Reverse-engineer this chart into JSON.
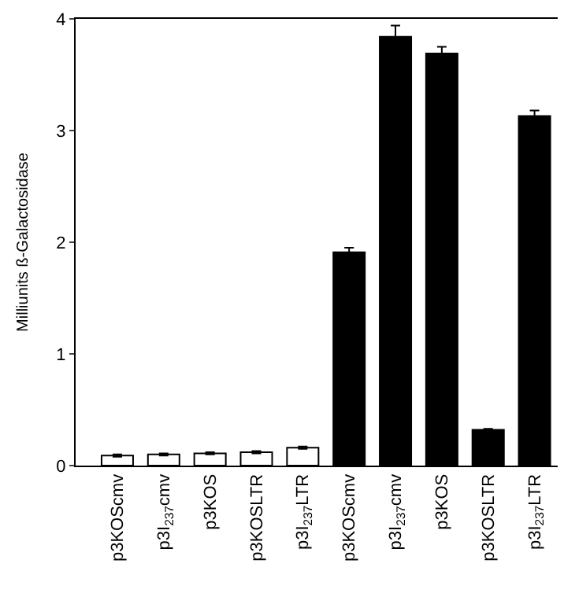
{
  "chart_data": {
    "type": "bar",
    "ylabel": "Milliunits ß-Galactosidase",
    "categories": [
      "p3KOScmv",
      "p3I$_{237}$cmv",
      "p3KOS",
      "p3KOSLTR",
      "p3I$_{237}$LTR",
      "p3KOScmv",
      "p3I$_{237}$cmv",
      "p3KOS",
      "p3KOSLTR",
      "p3I$_{237}$LTR"
    ],
    "values": [
      0.09,
      0.1,
      0.11,
      0.12,
      0.16,
      1.91,
      3.84,
      3.69,
      0.32,
      3.13
    ],
    "errors": [
      0.01,
      0.01,
      0.01,
      0.01,
      0.01,
      0.04,
      0.1,
      0.06,
      0.01,
      0.05
    ],
    "colors": [
      "#ffffff",
      "#ffffff",
      "#ffffff",
      "#ffffff",
      "#ffffff",
      "#000000",
      "#000000",
      "#000000",
      "#000000",
      "#000000"
    ],
    "ylim": [
      0,
      4
    ],
    "yticks": [
      0,
      1,
      2,
      3,
      4
    ]
  }
}
